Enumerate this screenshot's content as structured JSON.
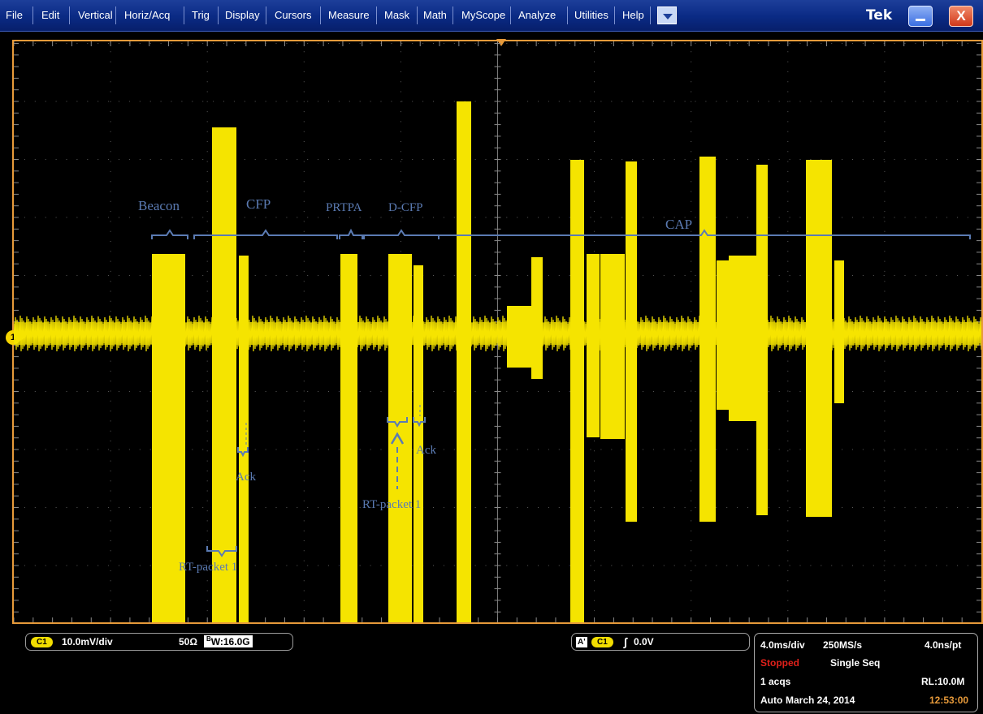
{
  "menu": {
    "items": [
      "File",
      "Edit",
      "Vertical",
      "Horiz/Acq",
      "Trig",
      "Display",
      "Cursors",
      "Measure",
      "Mask",
      "Math",
      "MyScope",
      "Analyze",
      "Utilities",
      "Help"
    ],
    "brand": "Tek",
    "close_glyph": "X",
    "dropdown_icon": "chevron-down-icon",
    "minimize_icon": "minimize-icon",
    "close_icon": "close-icon"
  },
  "scope": {
    "channel_marker": "1",
    "annotations": {
      "beacon": "Beacon",
      "cfp": "CFP",
      "prtpa": "PRTPA",
      "dcfp": "D-CFP",
      "cap": "CAP",
      "ack1": "Ack",
      "ack2": "Ack",
      "rt1": "RT-packet 1",
      "rt2": "RT-packet 1"
    }
  },
  "vertical": {
    "channel": "C1",
    "scale": "10.0mV/div",
    "impedance": "50Ω",
    "bw_prefix": "B",
    "bandwidth": "W:16.0G"
  },
  "trigger": {
    "source_prefix": "A'",
    "channel": "C1",
    "slope_symbol": "∫",
    "level": "0.0V"
  },
  "acquisition": {
    "timebase": "4.0ms/div",
    "sample_rate": "250MS/s",
    "resolution": "4.0ns/pt",
    "state": "Stopped",
    "mode": "Single Seq",
    "acqs": "1 acqs",
    "record_length": "RL:10.0M",
    "trigger_mode": "Auto",
    "date": "March 24, 2014",
    "time": "12:53:00"
  },
  "colors": {
    "trace": "#f5e400",
    "frame": "#e79a3a",
    "annotation": "#5b7bb3",
    "menubar": "#0a2a84"
  }
}
